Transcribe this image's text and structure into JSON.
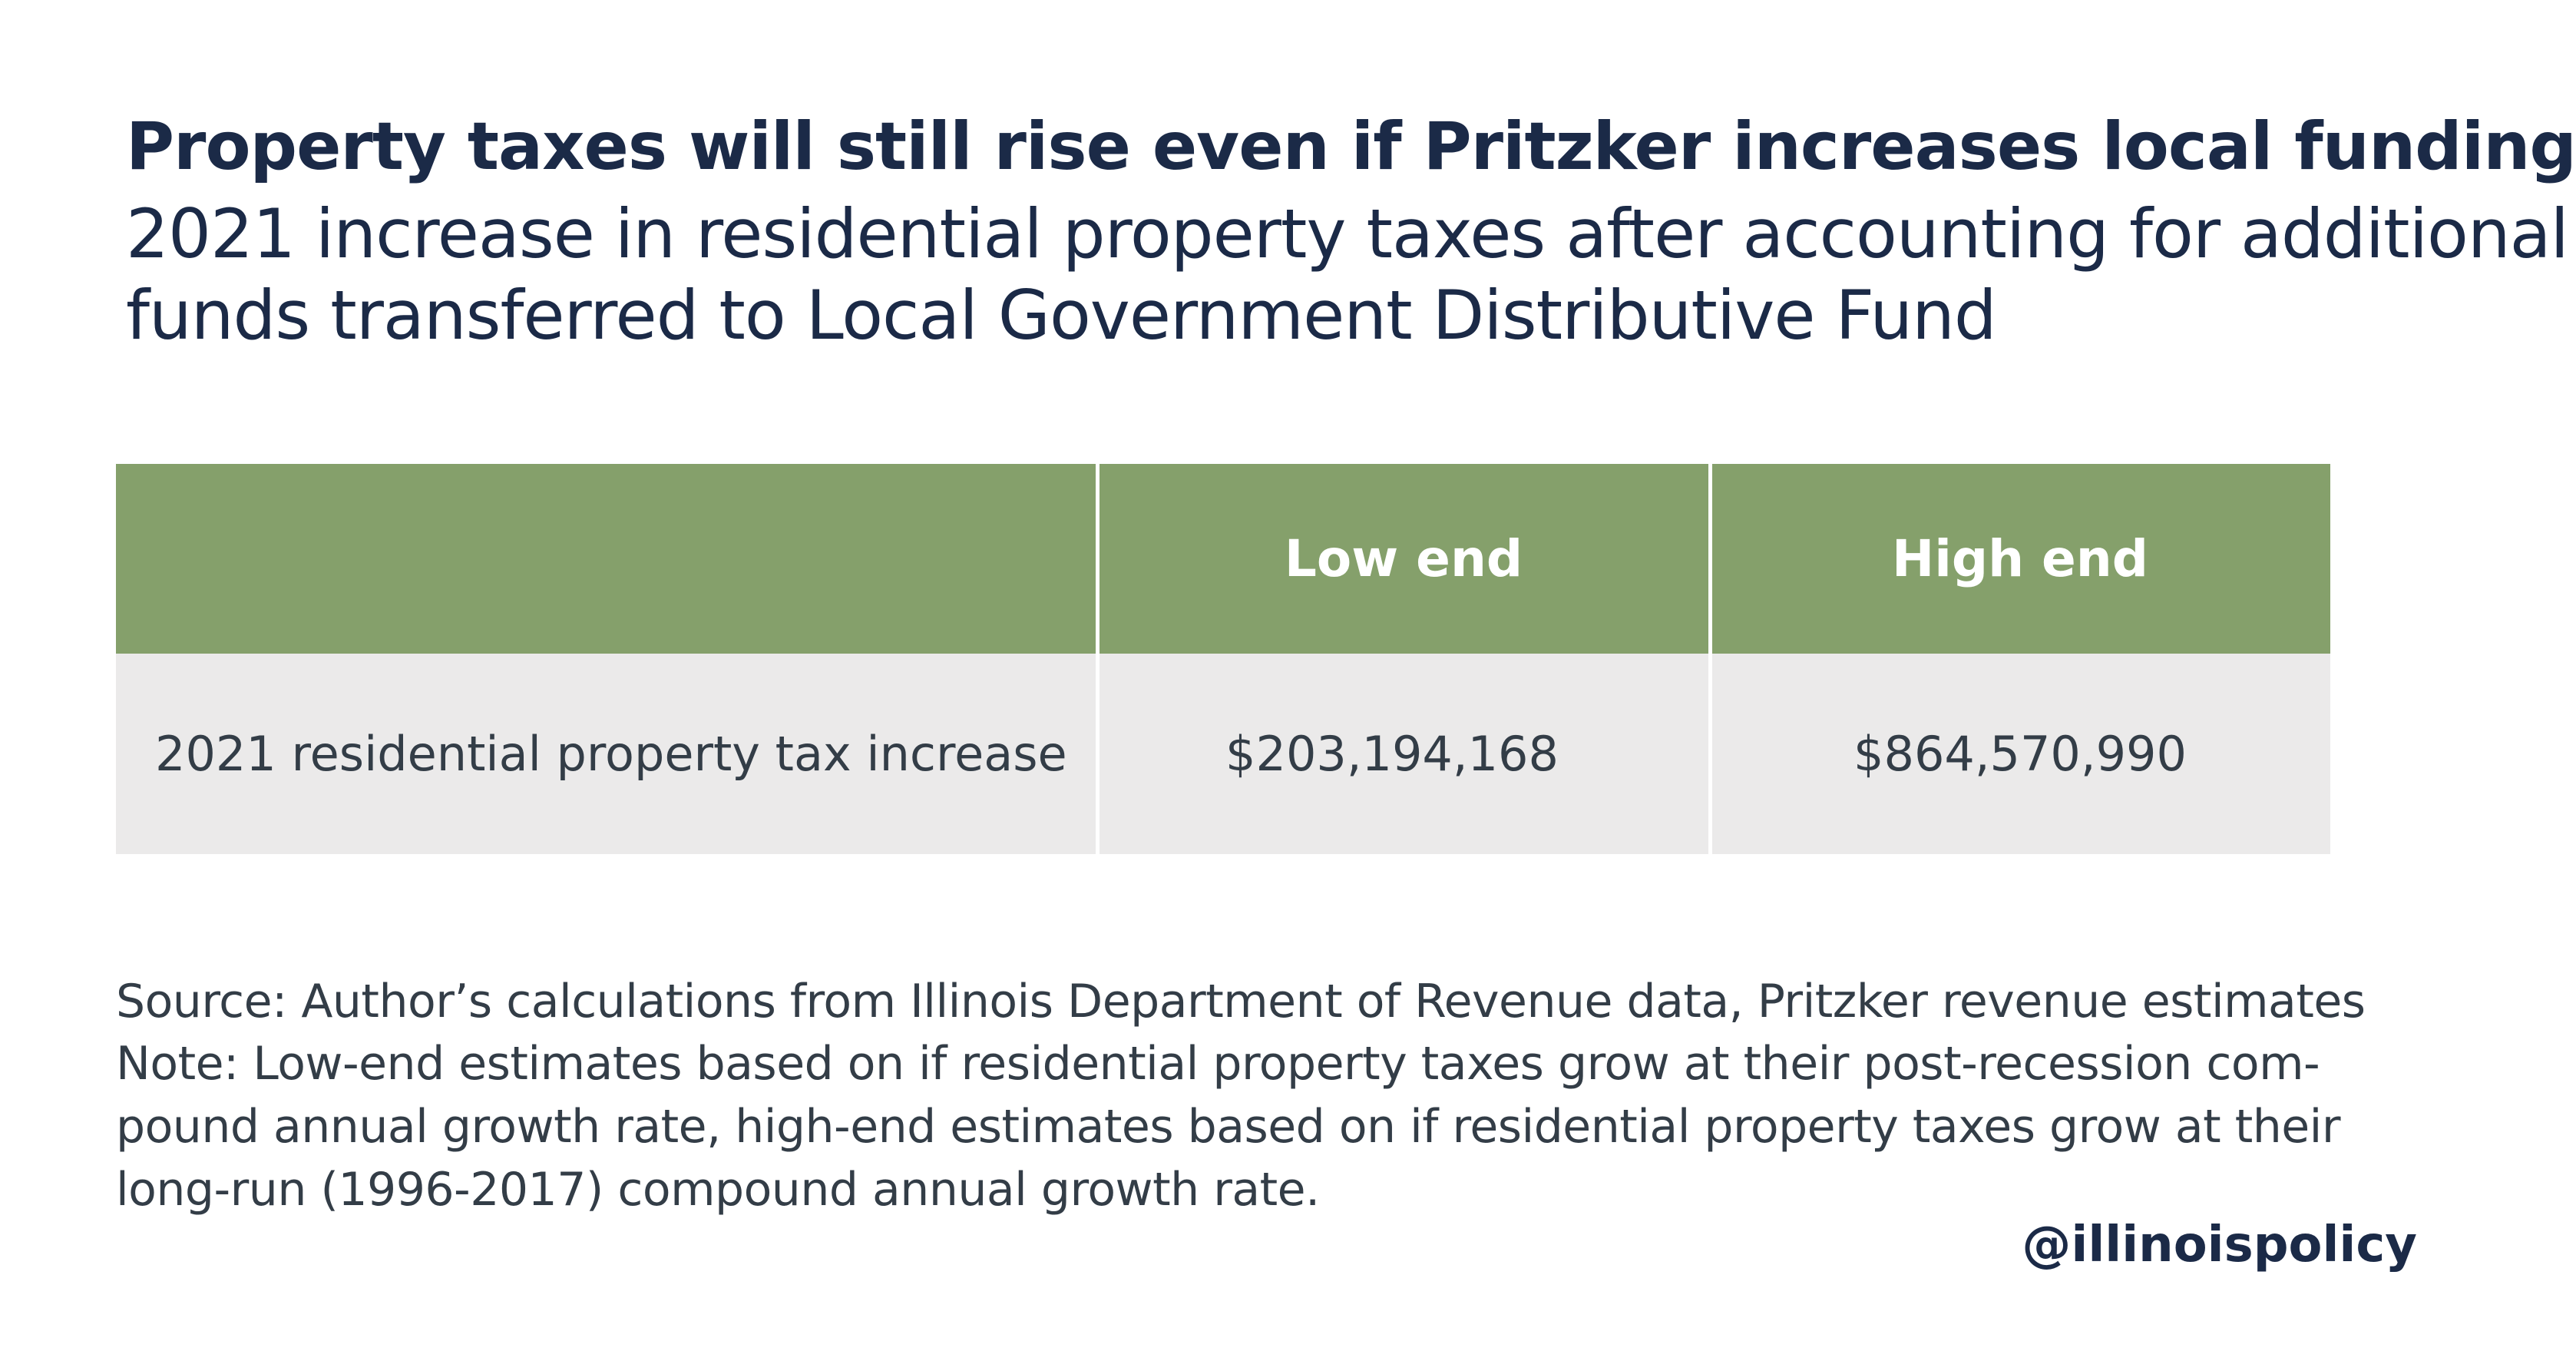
{
  "header": {
    "title": "Property taxes will still rise even if Pritzker increases local funding",
    "subtitle": [
      "2021 increase in residential property taxes after accounting for additional",
      "funds transferred to Local Government Distributive Fund"
    ]
  },
  "table": {
    "columns": [
      "Low end",
      "High end"
    ],
    "rows": [
      [
        "2021 residential property tax increase",
        "$203,194,168",
        "$864,570,990"
      ]
    ]
  },
  "notes": [
    "Source: Author’s calculations from Illinois Department of Revenue data, Pritzker revenue estimates",
    "Note: Low-end estimates based on if residential property taxes grow at their post-recession com-",
    "pound annual growth rate, high-end estimates based on if residential property taxes grow at their",
    "long-run (1996-2017) compound annual growth rate."
  ],
  "footer": {
    "handle": "@illinoispolicy"
  }
}
